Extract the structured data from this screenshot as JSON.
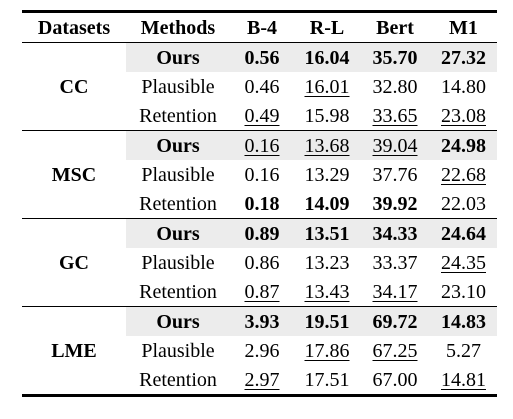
{
  "header": [
    "Datasets",
    "Methods",
    "B-4",
    "R-L",
    "Bert",
    "M1"
  ],
  "groups": [
    {
      "dataset": "CC",
      "rows": [
        {
          "method": "Ours",
          "values": [
            "0.56",
            "16.04",
            "35.70",
            "27.32"
          ],
          "bold": [
            true,
            true,
            true,
            true
          ],
          "underline": [
            false,
            false,
            false,
            false
          ]
        },
        {
          "method": "Plausible",
          "values": [
            "0.46",
            "16.01",
            "32.80",
            "14.80"
          ],
          "bold": [
            false,
            false,
            false,
            false
          ],
          "underline": [
            false,
            true,
            false,
            false
          ]
        },
        {
          "method": "Retention",
          "values": [
            "0.49",
            "15.98",
            "33.65",
            "23.08"
          ],
          "bold": [
            false,
            false,
            false,
            false
          ],
          "underline": [
            true,
            false,
            true,
            true
          ]
        }
      ]
    },
    {
      "dataset": "MSC",
      "rows": [
        {
          "method": "Ours",
          "values": [
            "0.16",
            "13.68",
            "39.04",
            "24.98"
          ],
          "bold": [
            false,
            false,
            false,
            true
          ],
          "underline": [
            true,
            true,
            true,
            false
          ]
        },
        {
          "method": "Plausible",
          "values": [
            "0.16",
            "13.29",
            "37.76",
            "22.68"
          ],
          "bold": [
            false,
            false,
            false,
            false
          ],
          "underline": [
            false,
            false,
            false,
            true
          ]
        },
        {
          "method": "Retention",
          "values": [
            "0.18",
            "14.09",
            "39.92",
            "22.03"
          ],
          "bold": [
            true,
            true,
            true,
            false
          ],
          "underline": [
            false,
            false,
            false,
            false
          ]
        }
      ]
    },
    {
      "dataset": "GC",
      "rows": [
        {
          "method": "Ours",
          "values": [
            "0.89",
            "13.51",
            "34.33",
            "24.64"
          ],
          "bold": [
            true,
            true,
            true,
            true
          ],
          "underline": [
            false,
            false,
            false,
            false
          ]
        },
        {
          "method": "Plausible",
          "values": [
            "0.86",
            "13.23",
            "33.37",
            "24.35"
          ],
          "bold": [
            false,
            false,
            false,
            false
          ],
          "underline": [
            false,
            false,
            false,
            true
          ]
        },
        {
          "method": "Retention",
          "values": [
            "0.87",
            "13.43",
            "34.17",
            "23.10"
          ],
          "bold": [
            false,
            false,
            false,
            false
          ],
          "underline": [
            true,
            true,
            true,
            false
          ]
        }
      ]
    },
    {
      "dataset": "LME",
      "rows": [
        {
          "method": "Ours",
          "values": [
            "3.93",
            "19.51",
            "69.72",
            "14.83"
          ],
          "bold": [
            true,
            true,
            true,
            true
          ],
          "underline": [
            false,
            false,
            false,
            false
          ]
        },
        {
          "method": "Plausible",
          "values": [
            "2.96",
            "17.86",
            "67.25",
            "5.27"
          ],
          "bold": [
            false,
            false,
            false,
            false
          ],
          "underline": [
            false,
            true,
            true,
            false
          ]
        },
        {
          "method": "Retention",
          "values": [
            "2.97",
            "17.51",
            "67.00",
            "14.81"
          ],
          "bold": [
            false,
            false,
            false,
            false
          ],
          "underline": [
            true,
            false,
            false,
            true
          ]
        }
      ]
    }
  ],
  "colors": {
    "highlight_row": "#ececec",
    "text": "#000000"
  }
}
